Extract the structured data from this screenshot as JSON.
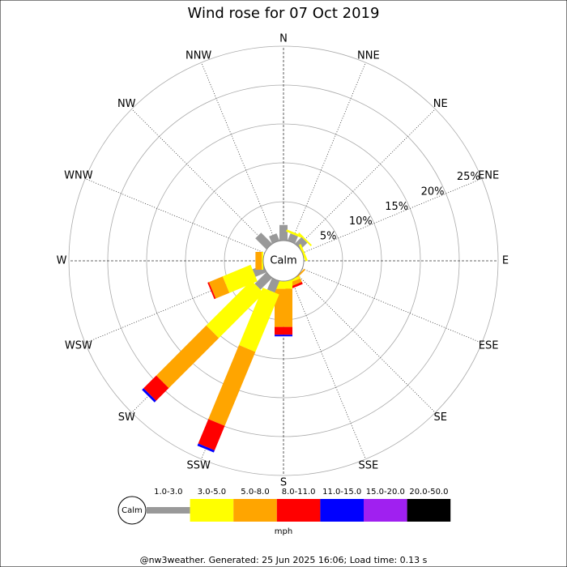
{
  "chart_data": {
    "type": "wind-rose",
    "title": "Wind rose for 07 Oct 2019",
    "directions": [
      "N",
      "NNE",
      "NE",
      "ENE",
      "E",
      "ESE",
      "SE",
      "SSE",
      "S",
      "SSW",
      "SW",
      "WSW",
      "W",
      "WNW",
      "NW",
      "NNW"
    ],
    "rlim": [
      0,
      25
    ],
    "rticks": [
      {
        "value": 5,
        "label": "5%"
      },
      {
        "value": 10,
        "label": "10%"
      },
      {
        "value": 15,
        "label": "15%"
      },
      {
        "value": 20,
        "label": "20%"
      },
      {
        "value": 25,
        "label": "25%"
      }
    ],
    "calm_label": "Calm",
    "unit": "mph",
    "series": [
      {
        "name": "1.0-3.0",
        "color": "#999999",
        "values": [
          2.0,
          1.0,
          1.2,
          0,
          0,
          0,
          0,
          0,
          0,
          1.6,
          2.1,
          1.5,
          0,
          0,
          2.0,
          1.0
        ]
      },
      {
        "name": "3.0-5.0",
        "color": "#ffff00",
        "values": [
          0,
          0.3,
          0.2,
          0.3,
          0,
          0,
          0,
          0.3,
          1.0,
          8.0,
          8.2,
          3.9,
          0.2,
          0,
          0,
          0
        ]
      },
      {
        "name": "5.0-8.0",
        "color": "#ffa500",
        "values": [
          0,
          0,
          0,
          0,
          0,
          0,
          0.2,
          0.5,
          4.9,
          10.3,
          9.1,
          1.9,
          0.8,
          0,
          0,
          0
        ]
      },
      {
        "name": "8.0-11.0",
        "color": "#ff0000",
        "values": [
          0,
          0,
          0,
          0,
          0,
          0,
          0,
          0.3,
          1.0,
          3.4,
          2.3,
          0.2,
          0,
          0,
          0,
          0
        ]
      },
      {
        "name": "11.0-15.0",
        "color": "#0000ff",
        "values": [
          0,
          0,
          0,
          0,
          0,
          0,
          0,
          0,
          0.2,
          0.3,
          0.3,
          0,
          0,
          0,
          0,
          0
        ]
      },
      {
        "name": "15.0-20.0",
        "color": "#a020f0",
        "values": [
          0,
          0,
          0,
          0,
          0,
          0,
          0,
          0,
          0,
          0,
          0,
          0,
          0,
          0,
          0,
          0
        ]
      },
      {
        "name": "20.0-50.0",
        "color": "#000000",
        "values": [
          0,
          0,
          0,
          0,
          0,
          0,
          0,
          0,
          0,
          0,
          0,
          0,
          0,
          0,
          0,
          0
        ]
      }
    ],
    "footer": "@nw3weather. Generated: 25 Jun 2025 16:06; Load time: 0.13 s"
  }
}
